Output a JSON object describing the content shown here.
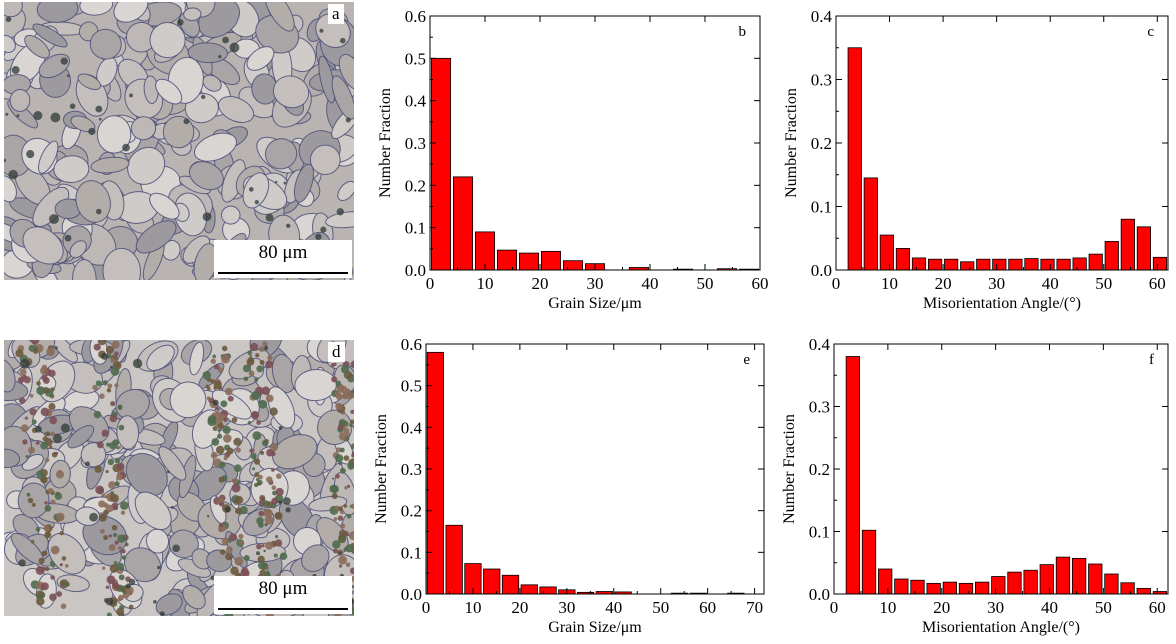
{
  "micrographs": [
    {
      "letter": "a",
      "scale_label": "80 μm",
      "bg": "#b9b4b2"
    },
    {
      "letter": "d",
      "scale_label": "80 μm",
      "bg": "#c9c6c3"
    }
  ],
  "colors": {
    "bar_fill": "#ff0000",
    "bar_stroke": "#000000"
  },
  "chart_data": [
    {
      "type": "bar",
      "letter": "b",
      "title": "",
      "xlabel": "Grain Size/μm",
      "ylabel": "Number Fraction",
      "xlim": [
        0,
        60
      ],
      "ylim": [
        0,
        0.6
      ],
      "xticks": [
        0,
        10,
        20,
        30,
        40,
        50,
        60
      ],
      "yticks": [
        0.0,
        0.1,
        0.2,
        0.3,
        0.4,
        0.5,
        0.6
      ],
      "ytick_labels": [
        "0.0",
        "0.1",
        "0.2",
        "0.3",
        "0.4",
        "0.5",
        "0.6"
      ],
      "bin_width": 4,
      "x": [
        2,
        6,
        10,
        14,
        18,
        22,
        26,
        30,
        34,
        38,
        42,
        46,
        50,
        54,
        58
      ],
      "values": [
        0.5,
        0.22,
        0.09,
        0.047,
        0.04,
        0.044,
        0.022,
        0.015,
        0.0,
        0.006,
        0.0,
        0.002,
        0.0,
        0.003,
        0.002
      ]
    },
    {
      "type": "bar",
      "letter": "c",
      "title": "",
      "xlabel": "Misorientation Angle/(°)",
      "ylabel": "Number Fraction",
      "xlim": [
        0,
        62
      ],
      "ylim": [
        0,
        0.4
      ],
      "xticks": [
        0,
        10,
        20,
        30,
        40,
        50,
        60
      ],
      "yticks": [
        0.0,
        0.1,
        0.2,
        0.3,
        0.4
      ],
      "ytick_labels": [
        "0.0",
        "0.1",
        "0.2",
        "0.3",
        "0.4"
      ],
      "bin_width": 3,
      "x": [
        3.5,
        6.5,
        9.5,
        12.5,
        15.5,
        18.5,
        21.5,
        24.5,
        27.5,
        30.5,
        33.5,
        36.5,
        39.5,
        42.5,
        45.5,
        48.5,
        51.5,
        54.5,
        57.5,
        60.5
      ],
      "values": [
        0.35,
        0.145,
        0.055,
        0.034,
        0.019,
        0.017,
        0.017,
        0.013,
        0.017,
        0.017,
        0.017,
        0.018,
        0.017,
        0.017,
        0.019,
        0.025,
        0.045,
        0.08,
        0.068,
        0.02
      ]
    },
    {
      "type": "bar",
      "letter": "e",
      "title": "",
      "xlabel": "Grain Size/μm",
      "ylabel": "Number Fraction",
      "xlim": [
        0,
        72
      ],
      "ylim": [
        0,
        0.6
      ],
      "xticks": [
        0,
        10,
        20,
        30,
        40,
        50,
        60,
        70
      ],
      "yticks": [
        0.0,
        0.1,
        0.2,
        0.3,
        0.4,
        0.5,
        0.6
      ],
      "ytick_labels": [
        "0.0",
        "0.1",
        "0.2",
        "0.3",
        "0.4",
        "0.5",
        "0.6"
      ],
      "bin_width": 4,
      "x": [
        2,
        6,
        10,
        14,
        18,
        22,
        26,
        30,
        34,
        38,
        42,
        46,
        50,
        54,
        58,
        62,
        66,
        70
      ],
      "values": [
        0.58,
        0.165,
        0.073,
        0.06,
        0.045,
        0.022,
        0.017,
        0.01,
        0.004,
        0.006,
        0.005,
        0.0,
        0.0,
        0.002,
        0.002,
        0.0,
        0.002,
        0.0
      ]
    },
    {
      "type": "bar",
      "letter": "f",
      "title": "",
      "xlabel": "Misorientation Angle/(°)",
      "ylabel": "Number Fraction",
      "xlim": [
        0,
        62
      ],
      "ylim": [
        0,
        0.4
      ],
      "xticks": [
        0,
        10,
        20,
        30,
        40,
        50,
        60
      ],
      "yticks": [
        0.0,
        0.1,
        0.2,
        0.3,
        0.4
      ],
      "ytick_labels": [
        "0.0",
        "0.1",
        "0.2",
        "0.3",
        "0.4"
      ],
      "bin_width": 3,
      "x": [
        3.5,
        6.5,
        9.5,
        12.5,
        15.5,
        18.5,
        21.5,
        24.5,
        27.5,
        30.5,
        33.5,
        36.5,
        39.5,
        42.5,
        45.5,
        48.5,
        51.5,
        54.5,
        57.5,
        60.5
      ],
      "values": [
        0.38,
        0.102,
        0.04,
        0.024,
        0.022,
        0.017,
        0.019,
        0.017,
        0.019,
        0.028,
        0.035,
        0.038,
        0.047,
        0.059,
        0.057,
        0.048,
        0.032,
        0.018,
        0.009,
        0.004
      ]
    }
  ]
}
